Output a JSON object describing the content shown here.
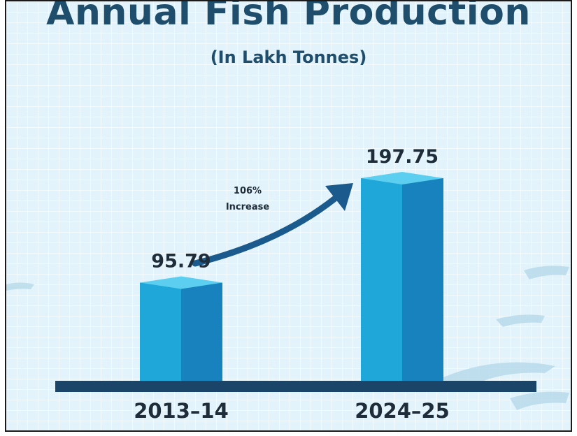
{
  "chart_data": {
    "type": "bar",
    "title": "Annual Fish Production",
    "subtitle": "(In Lakh Tonnes)",
    "categories": [
      "2013–14",
      "2024–25"
    ],
    "values": [
      95.79,
      197.75
    ],
    "value_labels": [
      "95.79",
      "197.75"
    ],
    "annotation": {
      "line1": "106%",
      "line2": "Increase"
    },
    "grid": true,
    "colors": {
      "bar_front": "#1ea7d8",
      "bar_side": "#1782bd",
      "bar_top": "#5ccff0",
      "baseline": "#1a4468",
      "text": "#1f2d3a",
      "title": "#1f4e6d",
      "arrow": "#1b5a8c",
      "background": "#e3f3fb"
    }
  }
}
